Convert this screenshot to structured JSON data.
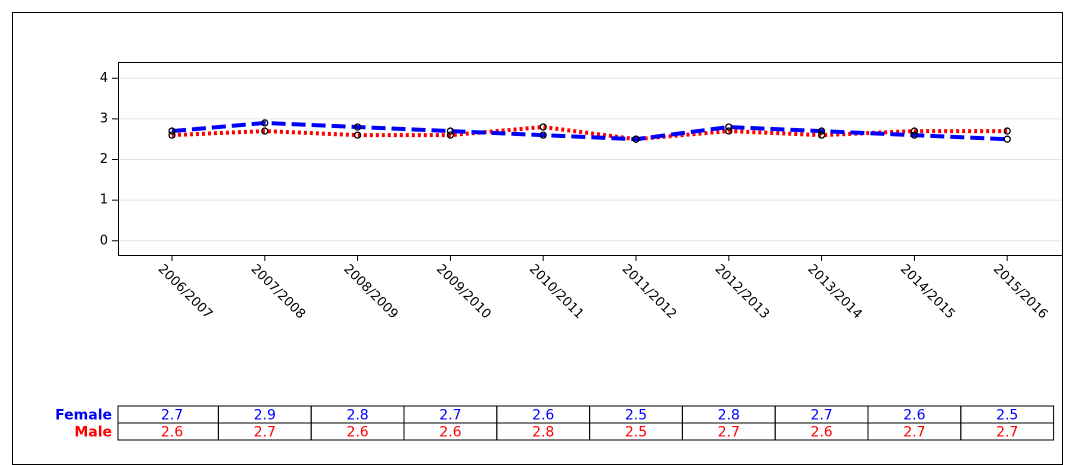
{
  "chart_data": {
    "type": "line",
    "categories": [
      "2006/2007",
      "2007/2008",
      "2008/2009",
      "2009/2010",
      "2010/2011",
      "2011/2012",
      "2012/2013",
      "2013/2014",
      "2014/2015",
      "2015/2016"
    ],
    "series": [
      {
        "name": "Female",
        "color": "#0000ff",
        "line_style": "dashed",
        "values": [
          2.7,
          2.9,
          2.8,
          2.7,
          2.6,
          2.5,
          2.8,
          2.7,
          2.6,
          2.5
        ]
      },
      {
        "name": "Male",
        "color": "#ff0000",
        "line_style": "dotted",
        "values": [
          2.6,
          2.7,
          2.6,
          2.6,
          2.8,
          2.5,
          2.7,
          2.6,
          2.7,
          2.7
        ]
      }
    ],
    "ylim": [
      -0.35,
      4.4
    ],
    "yticks": [
      0,
      1,
      2,
      3,
      4
    ],
    "grid": true
  }
}
